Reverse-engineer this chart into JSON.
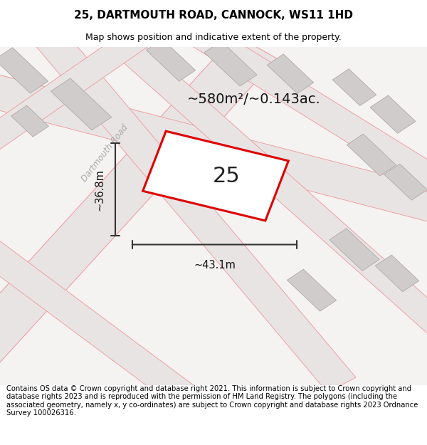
{
  "title": "25, DARTMOUTH ROAD, CANNOCK, WS11 1HD",
  "subtitle": "Map shows position and indicative extent of the property.",
  "footer": "Contains OS data © Crown copyright and database right 2021. This information is subject to Crown copyright and database rights 2023 and is reproduced with the permission of HM Land Registry. The polygons (including the associated geometry, namely x, y co-ordinates) are subject to Crown copyright and database rights 2023 Ordnance Survey 100026316.",
  "area_text": "~580m²/~0.143ac.",
  "width_label": "~43.1m",
  "height_label": "~36.8m",
  "plot_number": "25",
  "map_bg": "#f2efef",
  "road_fill": "#e8e4e4",
  "bldg_fill": "#d0cccc",
  "bldg_edge": "#b0aaaa",
  "red_line_color": "#dd0000",
  "pink": "#f0a0a0",
  "dim_color": "#333333",
  "road_label_color": "#aaaaaa",
  "title_fontsize": 11,
  "subtitle_fontsize": 9,
  "footer_fontsize": 7.2,
  "area_fontsize": 14,
  "plot_label_fontsize": 22,
  "dim_fontsize": 10.5
}
